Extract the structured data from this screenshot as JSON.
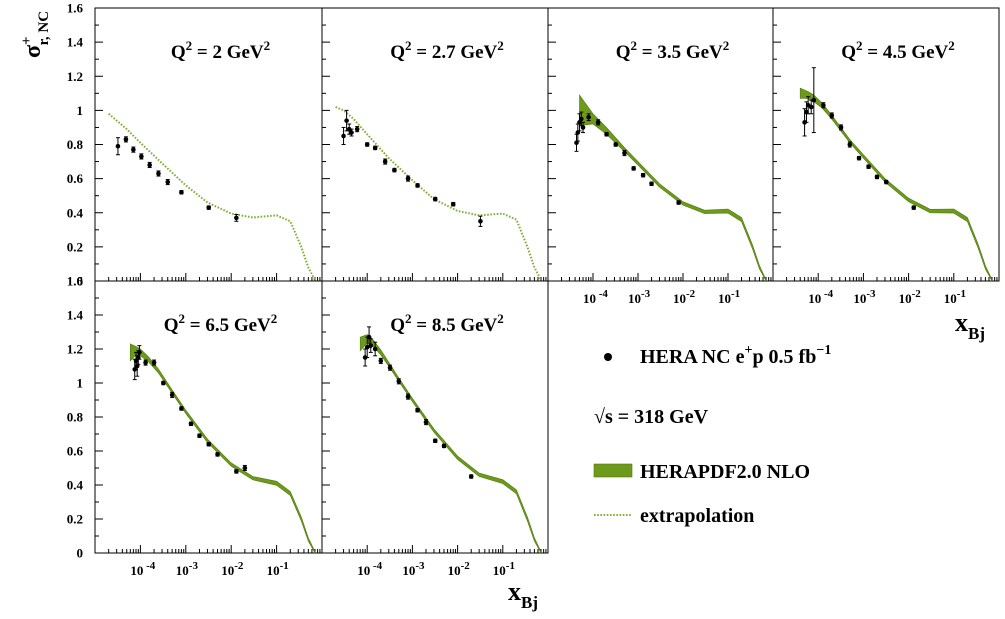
{
  "chart_data": {
    "type": "scatter",
    "ylabel": "σ",
    "ylabel_sup": "+",
    "ylabel_sub": "r, NC",
    "xlabel": "x",
    "xlabel_sub": "Bj",
    "y_ticks": [
      "0",
      "0.2",
      "0.4",
      "0.6",
      "0.8",
      "1",
      "1.2",
      "1.4",
      "1.6"
    ],
    "ylim": [
      0,
      1.6
    ],
    "xscale": "log",
    "xlim": [
      1e-05,
      1
    ],
    "x_ticks": [
      {
        "value": 0.0001,
        "base": "10",
        "exp": " -4"
      },
      {
        "value": 0.001,
        "base": "10",
        "exp": "-3"
      },
      {
        "value": 0.01,
        "base": "10",
        "exp": "-2"
      },
      {
        "value": 0.1,
        "base": "10",
        "exp": "-1"
      }
    ],
    "colors": {
      "band": "#6e9a1c",
      "band_edge": "#4f7a10",
      "extrapolation": "#7fae35",
      "data": "#000000"
    },
    "legend": {
      "placement": "bottom-right",
      "entries": [
        {
          "symbol": "marker",
          "text": "HERA NC e",
          "sup1": "+",
          "text2": "p 0.5 fb",
          "sup2": "−1"
        },
        {
          "symbol": "none",
          "text": "√s = 318 GeV"
        },
        {
          "symbol": "band",
          "text": "HERAPDF2.0 NLO"
        },
        {
          "symbol": "dotted",
          "text": "extrapolation"
        }
      ]
    },
    "panels": [
      {
        "label_pre": "Q",
        "label_exp": "2",
        "label_mid": " = 2 GeV",
        "label_exp2": "2",
        "curve_x": [
          2e-05,
          5e-05,
          0.0001,
          0.0003,
          0.001,
          0.003,
          0.01,
          0.03,
          0.1,
          0.2,
          0.35,
          0.5,
          0.7
        ],
        "curve_y": [
          0.98,
          0.89,
          0.81,
          0.69,
          0.56,
          0.46,
          0.395,
          0.372,
          0.385,
          0.35,
          0.2,
          0.08,
          0.0
        ],
        "curve_type": "extrapolation",
        "points": [
          {
            "x": 3.2e-05,
            "y": 0.79,
            "e": 0.05
          },
          {
            "x": 4.8e-05,
            "y": 0.83,
            "e": 0.015
          },
          {
            "x": 7e-05,
            "y": 0.77,
            "e": 0.015
          },
          {
            "x": 0.000105,
            "y": 0.73,
            "e": 0.015
          },
          {
            "x": 0.00016,
            "y": 0.68,
            "e": 0.015
          },
          {
            "x": 0.00025,
            "y": 0.63,
            "e": 0.015
          },
          {
            "x": 0.0004,
            "y": 0.58,
            "e": 0.015
          },
          {
            "x": 0.0008,
            "y": 0.52,
            "e": 0.01
          },
          {
            "x": 0.0032,
            "y": 0.43,
            "e": 0.01
          },
          {
            "x": 0.013,
            "y": 0.37,
            "e": 0.02
          }
        ]
      },
      {
        "label_pre": "Q",
        "label_exp": "2",
        "label_mid": " = 2.7 GeV",
        "label_exp2": "2",
        "curve_x": [
          2e-05,
          3e-05,
          5e-05,
          0.0001,
          0.0003,
          0.001,
          0.003,
          0.01,
          0.03,
          0.1,
          0.2,
          0.35,
          0.5,
          0.7
        ],
        "curve_y": [
          1.02,
          1.0,
          0.95,
          0.86,
          0.72,
          0.59,
          0.48,
          0.41,
          0.385,
          0.395,
          0.36,
          0.2,
          0.08,
          0.0
        ],
        "curve_type": "extrapolation",
        "points": [
          {
            "x": 3e-05,
            "y": 0.85,
            "e": 0.05
          },
          {
            "x": 3.5e-05,
            "y": 0.94,
            "e": 0.06
          },
          {
            "x": 4e-05,
            "y": 0.89,
            "e": 0.03
          },
          {
            "x": 4.5e-05,
            "y": 0.87,
            "e": 0.02
          },
          {
            "x": 6e-05,
            "y": 0.89,
            "e": 0.015
          },
          {
            "x": 0.0001,
            "y": 0.8,
            "e": 0.01
          },
          {
            "x": 0.00015,
            "y": 0.78,
            "e": 0.01
          },
          {
            "x": 0.00025,
            "y": 0.7,
            "e": 0.015
          },
          {
            "x": 0.0004,
            "y": 0.65,
            "e": 0.01
          },
          {
            "x": 0.0008,
            "y": 0.6,
            "e": 0.015
          },
          {
            "x": 0.0013,
            "y": 0.56,
            "e": 0.01
          },
          {
            "x": 0.0032,
            "y": 0.48,
            "e": 0.01
          },
          {
            "x": 0.008,
            "y": 0.45,
            "e": 0.01
          },
          {
            "x": 0.032,
            "y": 0.35,
            "e": 0.03
          }
        ]
      },
      {
        "label_pre": "Q",
        "label_exp": "2",
        "label_mid": " = 3.5 GeV",
        "label_exp2": "2",
        "curve_x": [
          5e-05,
          0.0001,
          0.0002,
          0.0005,
          0.001,
          0.003,
          0.01,
          0.03,
          0.1,
          0.2,
          0.35,
          0.5,
          0.7
        ],
        "curve_y": [
          1.0,
          0.95,
          0.88,
          0.77,
          0.69,
          0.56,
          0.455,
          0.405,
          0.41,
          0.36,
          0.2,
          0.08,
          0.0
        ],
        "band_hw": [
          0.09,
          0.03,
          0.02,
          0.012,
          0.01,
          0.01,
          0.01,
          0.01,
          0.012,
          0.012,
          0.012,
          0.01,
          0.008
        ],
        "curve_type": "band",
        "points": [
          {
            "x": 4.3e-05,
            "y": 0.81,
            "e": 0.05
          },
          {
            "x": 4.6e-05,
            "y": 0.87,
            "e": 0.05
          },
          {
            "x": 5e-05,
            "y": 0.93,
            "e": 0.05
          },
          {
            "x": 5.5e-05,
            "y": 0.95,
            "e": 0.04
          },
          {
            "x": 6e-05,
            "y": 0.9,
            "e": 0.03
          },
          {
            "x": 8e-05,
            "y": 0.96,
            "e": 0.02
          },
          {
            "x": 0.00013,
            "y": 0.93,
            "e": 0.015
          },
          {
            "x": 0.0002,
            "y": 0.86,
            "e": 0.01
          },
          {
            "x": 0.00032,
            "y": 0.8,
            "e": 0.01
          },
          {
            "x": 0.0005,
            "y": 0.75,
            "e": 0.015
          },
          {
            "x": 0.0008,
            "y": 0.66,
            "e": 0.01
          },
          {
            "x": 0.0013,
            "y": 0.62,
            "e": 0.01
          },
          {
            "x": 0.002,
            "y": 0.57,
            "e": 0.01
          },
          {
            "x": 0.008,
            "y": 0.46,
            "e": 0.01
          }
        ]
      },
      {
        "label_pre": "Q",
        "label_exp": "2",
        "label_mid": " = 4.5 GeV",
        "label_exp2": "2",
        "curve_x": [
          4e-05,
          6e-05,
          8e-05,
          0.00012,
          0.0002,
          0.0005,
          0.001,
          0.003,
          0.01,
          0.03,
          0.1,
          0.2,
          0.35,
          0.5,
          0.7
        ],
        "curve_y": [
          1.1,
          1.09,
          1.07,
          1.03,
          0.96,
          0.82,
          0.73,
          0.59,
          0.475,
          0.41,
          0.41,
          0.36,
          0.2,
          0.08,
          0.0
        ],
        "band_hw": [
          0.03,
          0.02,
          0.02,
          0.015,
          0.012,
          0.01,
          0.01,
          0.01,
          0.01,
          0.01,
          0.012,
          0.012,
          0.012,
          0.01,
          0.008
        ],
        "curve_type": "band",
        "points": [
          {
            "x": 5e-05,
            "y": 0.93,
            "e": 0.08
          },
          {
            "x": 5.5e-05,
            "y": 0.99,
            "e": 0.06
          },
          {
            "x": 6e-05,
            "y": 1.03,
            "e": 0.05
          },
          {
            "x": 7e-05,
            "y": 1.02,
            "e": 0.04
          },
          {
            "x": 8e-05,
            "y": 1.06,
            "e": 0.19
          },
          {
            "x": 0.00013,
            "y": 1.03,
            "e": 0.015
          },
          {
            "x": 0.0002,
            "y": 0.97,
            "e": 0.015
          },
          {
            "x": 0.00032,
            "y": 0.9,
            "e": 0.015
          },
          {
            "x": 0.0005,
            "y": 0.8,
            "e": 0.015
          },
          {
            "x": 0.0008,
            "y": 0.72,
            "e": 0.01
          },
          {
            "x": 0.0013,
            "y": 0.67,
            "e": 0.01
          },
          {
            "x": 0.002,
            "y": 0.61,
            "e": 0.01
          },
          {
            "x": 0.0032,
            "y": 0.58,
            "e": 0.01
          },
          {
            "x": 0.013,
            "y": 0.43,
            "e": 0.01
          }
        ]
      },
      {
        "label_pre": "Q",
        "label_exp": "2",
        "label_mid": " = 6.5 GeV",
        "label_exp2": "2",
        "curve_x": [
          6e-05,
          8e-05,
          0.0001,
          0.00015,
          0.00025,
          0.0005,
          0.001,
          0.003,
          0.01,
          0.03,
          0.1,
          0.2,
          0.35,
          0.5,
          0.7
        ],
        "curve_y": [
          1.18,
          1.19,
          1.18,
          1.14,
          1.07,
          0.95,
          0.83,
          0.66,
          0.52,
          0.44,
          0.41,
          0.35,
          0.2,
          0.08,
          0.0
        ],
        "band_hw": [
          0.05,
          0.025,
          0.02,
          0.015,
          0.012,
          0.01,
          0.01,
          0.01,
          0.01,
          0.01,
          0.012,
          0.012,
          0.012,
          0.01,
          0.008
        ],
        "curve_type": "band",
        "points": [
          {
            "x": 7.5e-05,
            "y": 1.08,
            "e": 0.06
          },
          {
            "x": 8e-05,
            "y": 1.13,
            "e": 0.05
          },
          {
            "x": 8.5e-05,
            "y": 1.1,
            "e": 0.06
          },
          {
            "x": 9e-05,
            "y": 1.15,
            "e": 0.04
          },
          {
            "x": 9.5e-05,
            "y": 1.18,
            "e": 0.04
          },
          {
            "x": 0.00013,
            "y": 1.12,
            "e": 0.015
          },
          {
            "x": 0.0002,
            "y": 1.12,
            "e": 0.015
          },
          {
            "x": 0.00032,
            "y": 1.0,
            "e": 0.01
          },
          {
            "x": 0.0005,
            "y": 0.93,
            "e": 0.015
          },
          {
            "x": 0.0008,
            "y": 0.85,
            "e": 0.01
          },
          {
            "x": 0.0013,
            "y": 0.76,
            "e": 0.01
          },
          {
            "x": 0.002,
            "y": 0.69,
            "e": 0.01
          },
          {
            "x": 0.0032,
            "y": 0.64,
            "e": 0.01
          },
          {
            "x": 0.005,
            "y": 0.58,
            "e": 0.01
          },
          {
            "x": 0.013,
            "y": 0.48,
            "e": 0.01
          },
          {
            "x": 0.02,
            "y": 0.5,
            "e": 0.015
          }
        ]
      },
      {
        "label_pre": "Q",
        "label_exp": "2",
        "label_mid": " = 8.5 GeV",
        "label_exp2": "2",
        "curve_x": [
          7e-05,
          0.0001,
          0.00013,
          0.0002,
          0.0003,
          0.0005,
          0.001,
          0.003,
          0.01,
          0.03,
          0.1,
          0.2,
          0.35,
          0.5,
          0.7
        ],
        "curve_y": [
          1.23,
          1.26,
          1.24,
          1.18,
          1.11,
          1.02,
          0.9,
          0.72,
          0.56,
          0.46,
          0.42,
          0.36,
          0.2,
          0.08,
          0.0
        ],
        "band_hw": [
          0.04,
          0.025,
          0.02,
          0.015,
          0.012,
          0.01,
          0.01,
          0.01,
          0.01,
          0.01,
          0.012,
          0.012,
          0.012,
          0.01,
          0.008
        ],
        "curve_type": "band",
        "points": [
          {
            "x": 9e-05,
            "y": 1.15,
            "e": 0.05
          },
          {
            "x": 0.0001,
            "y": 1.21,
            "e": 0.06
          },
          {
            "x": 0.00011,
            "y": 1.27,
            "e": 0.06
          },
          {
            "x": 0.00012,
            "y": 1.22,
            "e": 0.04
          },
          {
            "x": 0.00015,
            "y": 1.2,
            "e": 0.04
          },
          {
            "x": 0.0002,
            "y": 1.13,
            "e": 0.015
          },
          {
            "x": 0.00032,
            "y": 1.09,
            "e": 0.015
          },
          {
            "x": 0.0005,
            "y": 1.01,
            "e": 0.015
          },
          {
            "x": 0.0008,
            "y": 0.92,
            "e": 0.015
          },
          {
            "x": 0.0013,
            "y": 0.84,
            "e": 0.01
          },
          {
            "x": 0.002,
            "y": 0.77,
            "e": 0.015
          },
          {
            "x": 0.0032,
            "y": 0.66,
            "e": 0.01
          },
          {
            "x": 0.005,
            "y": 0.63,
            "e": 0.01
          },
          {
            "x": 0.02,
            "y": 0.45,
            "e": 0.01
          }
        ]
      }
    ]
  }
}
